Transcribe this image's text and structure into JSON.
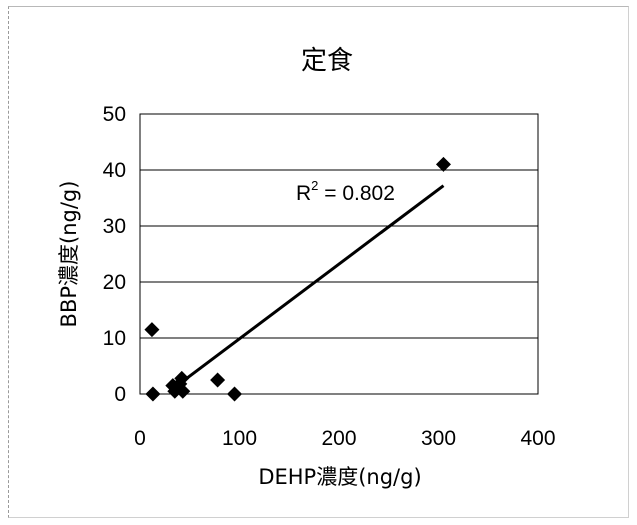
{
  "chart_data": {
    "type": "scatter",
    "title": "定食",
    "xlabel": "DEHP濃度(ng/g)",
    "ylabel": "BBP濃度(ng/g)",
    "xlim": [
      0,
      400
    ],
    "ylim": [
      0,
      50
    ],
    "x_ticks": [
      "0",
      "100",
      "200",
      "300",
      "400"
    ],
    "y_ticks": [
      "0",
      "10",
      "20",
      "30",
      "40",
      "50"
    ],
    "grid": "horizontal",
    "legend": "none",
    "marker": "diamond",
    "color": "#000000",
    "points": [
      {
        "x": 305,
        "y": 41
      },
      {
        "x": 12,
        "y": 11.5
      },
      {
        "x": 13,
        "y": 0
      },
      {
        "x": 33,
        "y": 1.5
      },
      {
        "x": 35,
        "y": 0.5
      },
      {
        "x": 40,
        "y": 1.8
      },
      {
        "x": 42,
        "y": 2.8
      },
      {
        "x": 43,
        "y": 0.5
      },
      {
        "x": 78,
        "y": 2.5
      },
      {
        "x": 95,
        "y": 0
      }
    ],
    "trendline": {
      "type": "linear",
      "x": [
        35,
        305
      ],
      "y": [
        1.2,
        37.2
      ],
      "r2_label": "R",
      "r2_sup": "2",
      "r2_value": " = 0.802"
    }
  }
}
